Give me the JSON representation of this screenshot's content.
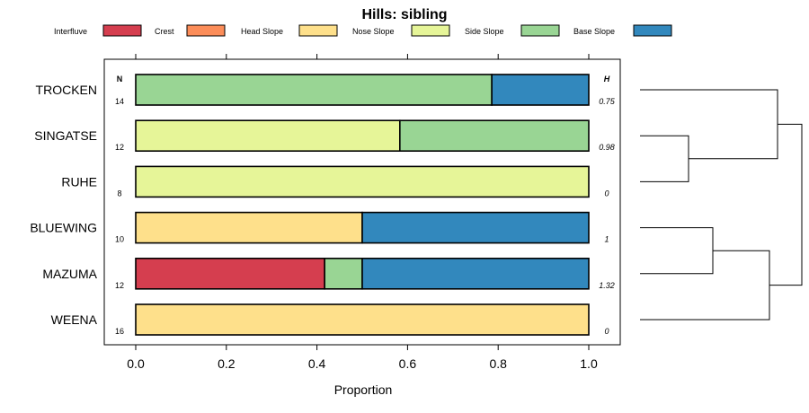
{
  "chart_data": {
    "type": "bar",
    "orientation": "horizontal-stacked-proportion",
    "title": "Hills: sibling",
    "xlabel": "Proportion",
    "ylabel": "",
    "xlim": [
      0,
      1
    ],
    "x_ticks": [
      0,
      0.2,
      0.4,
      0.6,
      0.8,
      1
    ],
    "x_tick_labels": [
      "0.0",
      "0.2",
      "0.4",
      "0.6",
      "0.8",
      "1.0"
    ],
    "n_header": "N",
    "h_header": "H",
    "legend": [
      {
        "name": "Interfluve",
        "color": "#D53E4F"
      },
      {
        "name": "Crest",
        "color": "#FC8D59"
      },
      {
        "name": "Head Slope",
        "color": "#FEE08B"
      },
      {
        "name": "Nose Slope",
        "color": "#E6F598"
      },
      {
        "name": "Side Slope",
        "color": "#99D594"
      },
      {
        "name": "Base Slope",
        "color": "#3288BD"
      }
    ],
    "categories": [
      "TROCKEN",
      "SINGATSE",
      "RUHE",
      "BLUEWING",
      "MAZUMA",
      "WEENA"
    ],
    "rows": [
      {
        "label": "TROCKEN",
        "n": "14",
        "h": "0.75",
        "values": [
          0,
          0,
          0,
          0,
          0.786,
          0.214
        ]
      },
      {
        "label": "SINGATSE",
        "n": "12",
        "h": "0.98",
        "values": [
          0,
          0,
          0,
          0.583,
          0.417,
          0
        ]
      },
      {
        "label": "RUHE",
        "n": "8",
        "h": "0",
        "values": [
          0,
          0,
          0,
          1,
          0,
          0
        ]
      },
      {
        "label": "BLUEWING",
        "n": "10",
        "h": "1",
        "values": [
          0,
          0,
          0.5,
          0,
          0,
          0.5
        ]
      },
      {
        "label": "MAZUMA",
        "n": "12",
        "h": "1.32",
        "values": [
          0.417,
          0,
          0,
          0,
          0.083,
          0.5
        ]
      },
      {
        "label": "WEENA",
        "n": "16",
        "h": "0",
        "values": [
          0,
          0,
          1,
          0,
          0,
          0
        ]
      }
    ],
    "dendrogram": {
      "merges": [
        {
          "left": "SINGATSE",
          "right": "RUHE",
          "height": 0.3
        },
        {
          "left": "TROCKEN",
          "right": [
            "SINGATSE",
            "RUHE"
          ],
          "height": 0.85
        },
        {
          "left": "BLUEWING",
          "right": "MAZUMA",
          "height": 0.45
        },
        {
          "left": [
            "BLUEWING",
            "MAZUMA"
          ],
          "right": "WEENA",
          "height": 0.8
        },
        {
          "left": [
            "TROCKEN",
            "SINGATSE",
            "RUHE"
          ],
          "right": [
            "BLUEWING",
            "MAZUMA",
            "WEENA"
          ],
          "height": 1.0
        }
      ]
    }
  }
}
